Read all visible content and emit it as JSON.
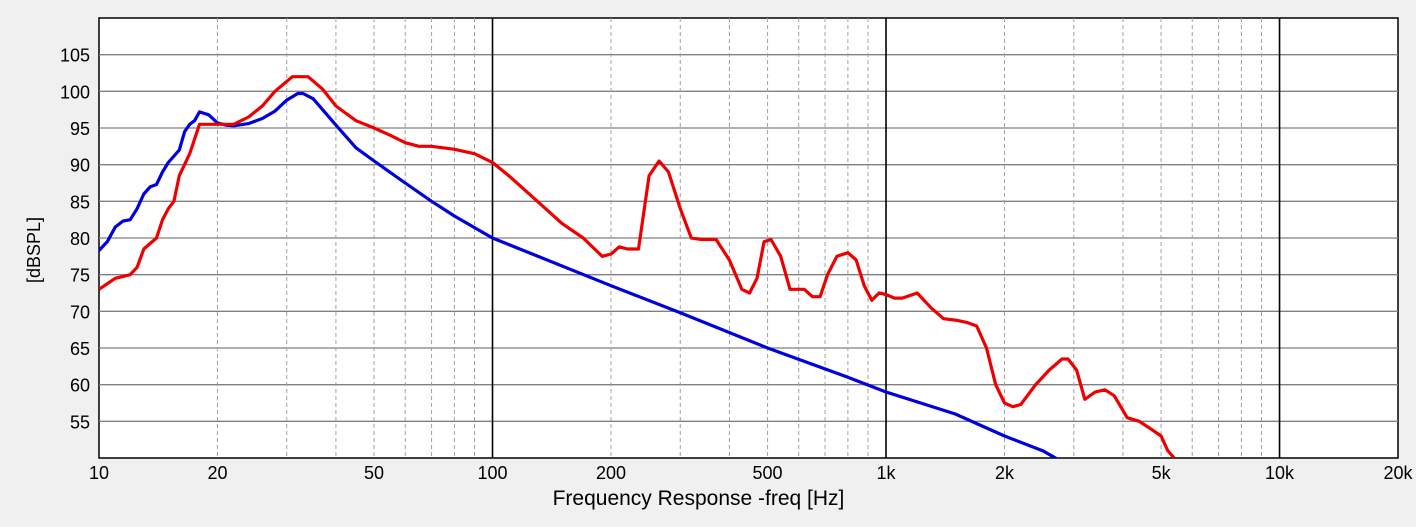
{
  "chart_data": {
    "type": "line",
    "title": "",
    "xlabel": "Frequency Response -freq [Hz]",
    "ylabel": "[dBSPL]",
    "x_scale": "log",
    "xlim": [
      10,
      20000
    ],
    "ylim": [
      50,
      110
    ],
    "x_tick_values": [
      10,
      20,
      50,
      100,
      200,
      500,
      1000,
      2000,
      5000,
      10000,
      20000
    ],
    "x_tick_labels": [
      "10",
      "20",
      "50",
      "100",
      "200",
      "500",
      "1k",
      "2k",
      "5k",
      "10k",
      "20k"
    ],
    "y_ticks": [
      55,
      60,
      65,
      70,
      75,
      80,
      85,
      90,
      95,
      100,
      105
    ],
    "grid": true,
    "legend": "none",
    "series": [
      {
        "color": "#0000dd",
        "points": [
          [
            10,
            78.3
          ],
          [
            10.5,
            79.5
          ],
          [
            11,
            81.5
          ],
          [
            11.5,
            82.3
          ],
          [
            12,
            82.5
          ],
          [
            12.5,
            84
          ],
          [
            13,
            86
          ],
          [
            13.5,
            87
          ],
          [
            14,
            87.3
          ],
          [
            14.5,
            89
          ],
          [
            15,
            90.3
          ],
          [
            16,
            92
          ],
          [
            16.5,
            94.5
          ],
          [
            17,
            95.5
          ],
          [
            17.5,
            96
          ],
          [
            18,
            97.2
          ],
          [
            19,
            96.8
          ],
          [
            20,
            95.7
          ],
          [
            21,
            95.4
          ],
          [
            22,
            95.3
          ],
          [
            24,
            95.6
          ],
          [
            26,
            96.3
          ],
          [
            28,
            97.3
          ],
          [
            30,
            98.8
          ],
          [
            32,
            99.7
          ],
          [
            33,
            99.7
          ],
          [
            35,
            99
          ],
          [
            37,
            97.5
          ],
          [
            40,
            95.4
          ],
          [
            45,
            92.3
          ],
          [
            50,
            90.5
          ],
          [
            60,
            87.5
          ],
          [
            70,
            85
          ],
          [
            80,
            83
          ],
          [
            100,
            80
          ],
          [
            200,
            73.5
          ],
          [
            300,
            69.8
          ],
          [
            500,
            65
          ],
          [
            800,
            61
          ],
          [
            1000,
            59
          ],
          [
            1500,
            56
          ],
          [
            2000,
            53
          ],
          [
            2500,
            51
          ],
          [
            2800,
            49.5
          ]
        ]
      },
      {
        "color": "#ee0000",
        "points": [
          [
            10,
            73
          ],
          [
            11,
            74.5
          ],
          [
            12,
            75
          ],
          [
            12.5,
            76
          ],
          [
            13,
            78.5
          ],
          [
            14,
            80
          ],
          [
            14.5,
            82.5
          ],
          [
            15,
            84
          ],
          [
            15.5,
            85
          ],
          [
            16,
            88.5
          ],
          [
            17,
            91.5
          ],
          [
            18,
            95.5
          ],
          [
            19,
            95.5
          ],
          [
            20,
            95.5
          ],
          [
            22,
            95.5
          ],
          [
            24,
            96.5
          ],
          [
            26,
            98
          ],
          [
            28,
            100
          ],
          [
            31,
            102
          ],
          [
            34,
            102
          ],
          [
            37,
            100.3
          ],
          [
            40,
            98
          ],
          [
            45,
            96
          ],
          [
            50,
            95
          ],
          [
            55,
            94
          ],
          [
            60,
            93
          ],
          [
            65,
            92.5
          ],
          [
            70,
            92.5
          ],
          [
            80,
            92.1
          ],
          [
            90,
            91.5
          ],
          [
            100,
            90.3
          ],
          [
            110,
            88.5
          ],
          [
            130,
            85
          ],
          [
            150,
            82
          ],
          [
            170,
            80
          ],
          [
            190,
            77.5
          ],
          [
            200,
            77.8
          ],
          [
            210,
            78.8
          ],
          [
            220,
            78.5
          ],
          [
            235,
            78.5
          ],
          [
            250,
            88.5
          ],
          [
            265,
            90.5
          ],
          [
            280,
            89
          ],
          [
            300,
            84
          ],
          [
            320,
            80
          ],
          [
            340,
            79.8
          ],
          [
            370,
            79.8
          ],
          [
            400,
            77
          ],
          [
            430,
            73
          ],
          [
            450,
            72.5
          ],
          [
            470,
            74.5
          ],
          [
            490,
            79.5
          ],
          [
            510,
            79.8
          ],
          [
            540,
            77.5
          ],
          [
            570,
            73
          ],
          [
            620,
            73
          ],
          [
            650,
            72
          ],
          [
            680,
            72
          ],
          [
            710,
            75
          ],
          [
            750,
            77.5
          ],
          [
            800,
            78
          ],
          [
            840,
            77
          ],
          [
            880,
            73.5
          ],
          [
            920,
            71.5
          ],
          [
            960,
            72.5
          ],
          [
            1000,
            72.3
          ],
          [
            1050,
            71.8
          ],
          [
            1100,
            71.8
          ],
          [
            1200,
            72.5
          ],
          [
            1300,
            70.5
          ],
          [
            1400,
            69
          ],
          [
            1500,
            68.8
          ],
          [
            1600,
            68.5
          ],
          [
            1700,
            68
          ],
          [
            1800,
            65
          ],
          [
            1900,
            60
          ],
          [
            2000,
            57.5
          ],
          [
            2100,
            57
          ],
          [
            2200,
            57.3
          ],
          [
            2400,
            60
          ],
          [
            2600,
            62
          ],
          [
            2800,
            63.5
          ],
          [
            2900,
            63.5
          ],
          [
            3050,
            62
          ],
          [
            3200,
            58
          ],
          [
            3400,
            59
          ],
          [
            3600,
            59.3
          ],
          [
            3800,
            58.5
          ],
          [
            4100,
            55.5
          ],
          [
            4400,
            55
          ],
          [
            4700,
            54
          ],
          [
            5000,
            53
          ],
          [
            5200,
            51
          ],
          [
            5400,
            50
          ]
        ]
      }
    ]
  }
}
